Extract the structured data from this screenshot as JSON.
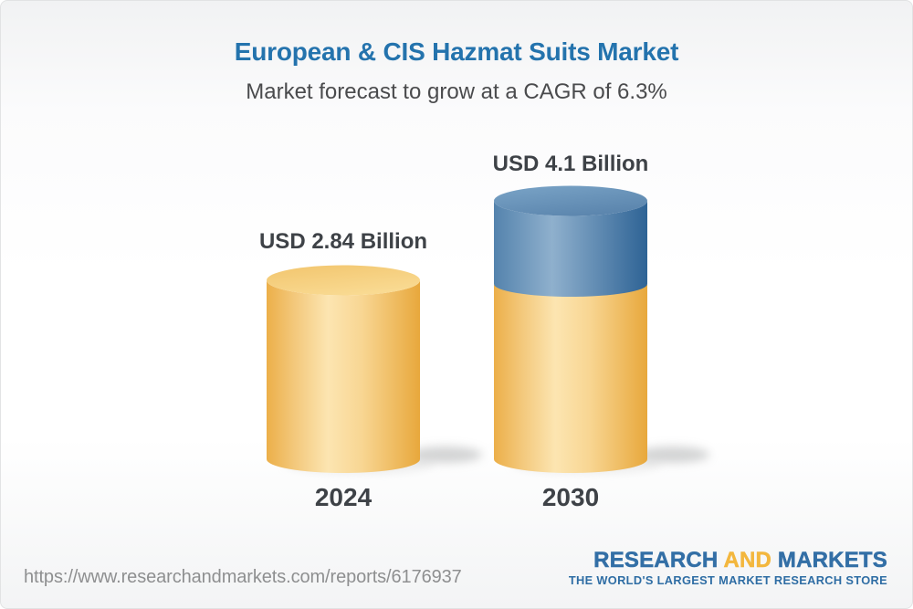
{
  "header": {
    "title": "European & CIS Hazmat Suits Market",
    "subtitle": "Market forecast to grow at a CAGR of 6.3%"
  },
  "chart_data": {
    "type": "bar",
    "subtype": "3d-cylinder-pictogram",
    "categories": [
      "2024",
      "2030"
    ],
    "values": [
      2.84,
      4.1
    ],
    "value_labels": [
      "USD 2.84 Billion",
      "USD 4.1 Billion"
    ],
    "unit": "USD Billion",
    "cagr_pct": 6.3,
    "title": "European & CIS Hazmat Suits Market",
    "xlabel": "",
    "ylabel": "",
    "axes_shown": false,
    "grid": false,
    "legend": false,
    "notes": "2030 cylinder: base portion equal to 2024 value shown in gold, incremental growth portion shown in blue on top"
  },
  "footer": {
    "url": "https://www.researchandmarkets.com/reports/6176937",
    "logo": {
      "word1": "RESEARCH",
      "word2": "AND",
      "word3": "MARKETS",
      "tagline": "THE WORLD'S LARGEST MARKET RESEARCH STORE"
    }
  },
  "colors": {
    "title_blue": "#2473ad",
    "subtitle_gray": "#4a4b4d",
    "label_dark": "#3e4247",
    "url_gray": "#8e8f90",
    "logo_blue": "#336fa6",
    "logo_gold": "#f3b73e",
    "tagline_blue": "#2e6da4",
    "cyl_gold_edge": "#ecaf49",
    "cyl_gold_highlight": "#fce5b1",
    "cyl_gold_dark": "#e8a83c",
    "cyl_gold_top_a": "#f2c56d",
    "cyl_gold_top_b": "#f9da92",
    "cyl_blue_edge": "#5483ad",
    "cyl_blue_highlight": "#8fb0cd",
    "cyl_blue_dark": "#2e6395",
    "cyl_blue_top_a": "#7aa4c7",
    "cyl_blue_top_b": "#5c86ae"
  }
}
